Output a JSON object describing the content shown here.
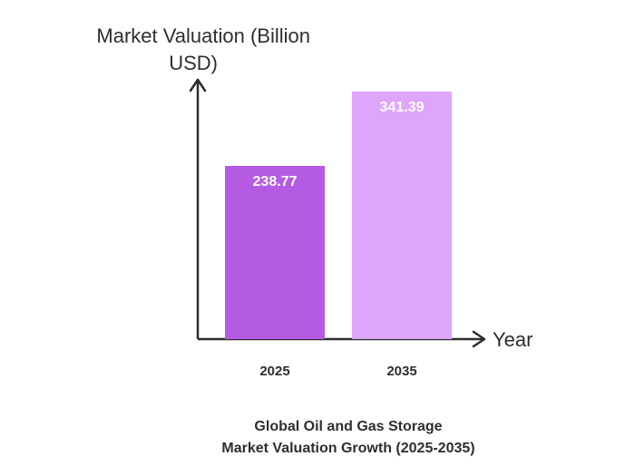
{
  "chart_data": {
    "type": "bar",
    "title_lines": [
      "Global Oil and Gas Storage",
      "Market Valuation Growth (2025-2035)"
    ],
    "ylabel_lines": [
      "Market Valuation (Billion",
      "USD)"
    ],
    "xlabel": "Year",
    "categories": [
      "2025",
      "2035"
    ],
    "values": [
      238.77,
      341.39
    ],
    "value_labels": [
      "238.77",
      "341.39"
    ],
    "bar_colors": [
      "#b55be3",
      "#dda6fa"
    ],
    "axis_color": "#2e2e2e",
    "ylim": [
      0,
      400
    ],
    "grid": false,
    "legend": "none"
  }
}
